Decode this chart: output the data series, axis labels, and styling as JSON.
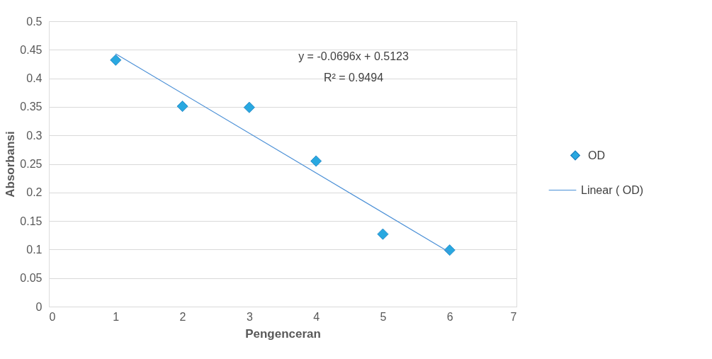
{
  "chart_data": {
    "type": "scatter",
    "xlabel": "Pengenceran",
    "ylabel": "Absorbansi",
    "x": [
      1,
      2,
      3,
      4,
      5,
      6
    ],
    "series": [
      {
        "name": "OD",
        "color": "#29a8e0",
        "marker": "diamond",
        "values": [
          0.432,
          0.351,
          0.349,
          0.255,
          0.127,
          0.099
        ]
      },
      {
        "name": "Linear (   OD)",
        "type": "line",
        "marker": "none",
        "color": "#4a8fd6",
        "x": [
          1,
          6
        ],
        "values": [
          0.443,
          0.095
        ]
      }
    ],
    "xlim": [
      0,
      7
    ],
    "xticks": [
      0,
      1,
      2,
      3,
      4,
      5,
      6,
      7
    ],
    "ylim": [
      0,
      0.5
    ],
    "yticks": [
      0,
      0.05,
      0.1,
      0.15,
      0.2,
      0.25,
      0.3,
      0.35,
      0.4,
      0.45,
      0.5
    ],
    "annotations": [
      "y = -0.0696x + 0.5123",
      "R² = 0.9494"
    ],
    "grid": "y",
    "legend": "right",
    "line_style": "solid"
  }
}
